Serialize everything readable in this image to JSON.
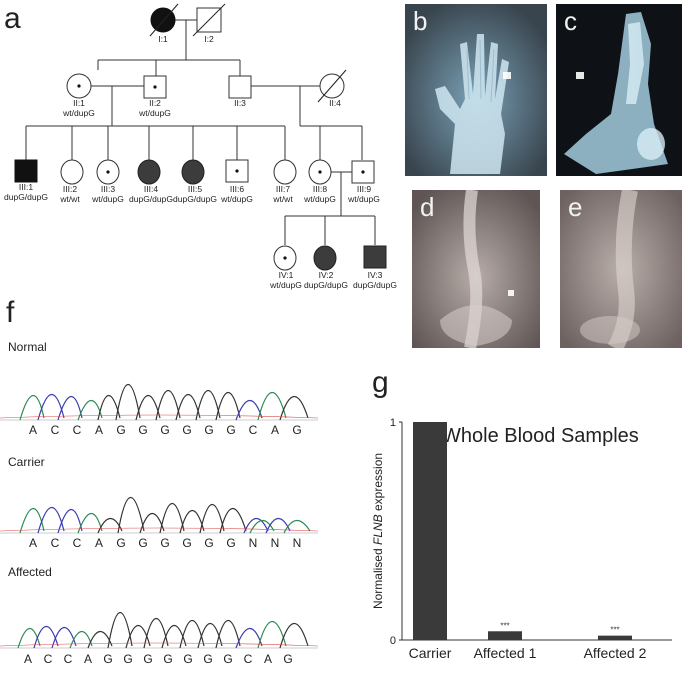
{
  "panels": {
    "a": {
      "letter": "a"
    },
    "b": {
      "letter": "b"
    },
    "c": {
      "letter": "c"
    },
    "d": {
      "letter": "d"
    },
    "e": {
      "letter": "e"
    },
    "f": {
      "letter": "f"
    },
    "g": {
      "letter": "g"
    }
  },
  "pedigree": {
    "individuals": [
      {
        "id": "I:1",
        "genotype": ""
      },
      {
        "id": "I:2",
        "genotype": ""
      },
      {
        "id": "II:1",
        "genotype": "wt/dupG"
      },
      {
        "id": "II:2",
        "genotype": "wt/dupG"
      },
      {
        "id": "II:3",
        "genotype": ""
      },
      {
        "id": "II:4",
        "genotype": ""
      },
      {
        "id": "III:1",
        "genotype": "dupG/dupG"
      },
      {
        "id": "III:2",
        "genotype": "wt/wt"
      },
      {
        "id": "III:3",
        "genotype": "wt/dupG"
      },
      {
        "id": "III:4",
        "genotype": "dupG/dupG"
      },
      {
        "id": "III:5",
        "genotype": "dupG/dupG"
      },
      {
        "id": "III:6",
        "genotype": "wt/dupG"
      },
      {
        "id": "III:7",
        "genotype": "wt/wt"
      },
      {
        "id": "III:8",
        "genotype": "wt/dupG"
      },
      {
        "id": "III:9",
        "genotype": "wt/dupG"
      },
      {
        "id": "IV:1",
        "genotype": "wt/dupG"
      },
      {
        "id": "IV:2",
        "genotype": "dupG/dupG"
      },
      {
        "id": "IV:3",
        "genotype": "dupG/dupG"
      }
    ]
  },
  "sequencing": {
    "tracks": [
      {
        "label": "Normal",
        "bases": [
          "A",
          "C",
          "C",
          "A",
          "G",
          "G",
          "G",
          "G",
          "G",
          "G",
          "C",
          "A",
          "G"
        ]
      },
      {
        "label": "Carrier",
        "bases": [
          "A",
          "C",
          "C",
          "A",
          "G",
          "G",
          "G",
          "G",
          "G",
          "G",
          "N",
          "N",
          "N"
        ]
      },
      {
        "label": "Affected",
        "bases": [
          "A",
          "C",
          "C",
          "A",
          "G",
          "G",
          "G",
          "G",
          "G",
          "G",
          "G",
          "C",
          "A",
          "G"
        ]
      }
    ]
  },
  "chart_data": {
    "type": "bar",
    "title": "Whole Blood Samples",
    "ylabel_prefix": "Normalised ",
    "ylabel_gene": "FLNB",
    "ylabel_suffix": " expression",
    "categories": [
      "Carrier",
      "Affected 1",
      "Affected 2"
    ],
    "values": [
      1,
      0.04,
      0.02
    ],
    "annotations": [
      "",
      "***",
      "***"
    ],
    "yticks": [
      "0",
      "1"
    ],
    "ylim": [
      0,
      1
    ],
    "bar_color": "#3a3a3a"
  }
}
